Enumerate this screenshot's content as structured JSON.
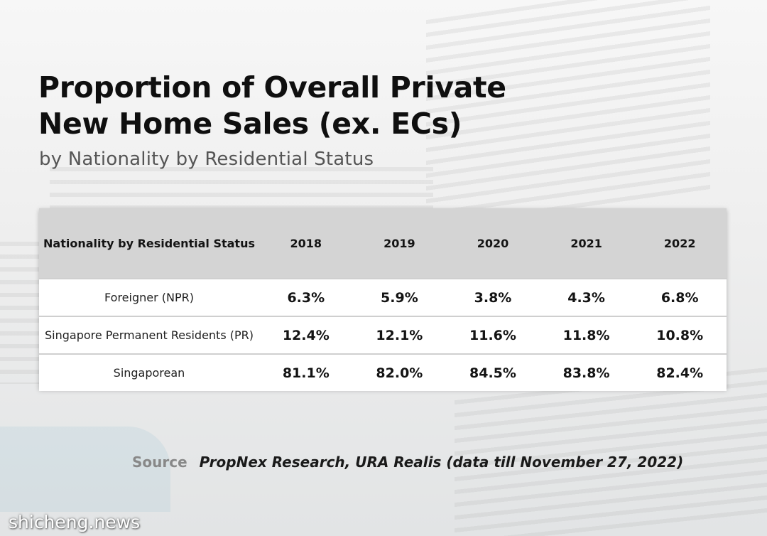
{
  "title": "Proportion of Overall Private New Home Sales (ex. ECs)",
  "subtitle": "by Nationality by Residential Status",
  "table": {
    "header_first": "Nationality by Residential Status",
    "years": [
      "2018",
      "2019",
      "2020",
      "2021",
      "2022"
    ],
    "rows": [
      {
        "label": "Foreigner (NPR)",
        "values": [
          "6.3%",
          "5.9%",
          "3.8%",
          "4.3%",
          "6.8%"
        ]
      },
      {
        "label": "Singapore Permanent Residents (PR)",
        "values": [
          "12.4%",
          "12.1%",
          "11.6%",
          "11.8%",
          "10.8%"
        ]
      },
      {
        "label": "Singaporean",
        "values": [
          "81.1%",
          "82.0%",
          "84.5%",
          "83.8%",
          "82.4%"
        ]
      }
    ]
  },
  "source": {
    "label": "Source",
    "text": "PropNex Research, URA Realis (data till November 27, 2022)"
  },
  "watermark": "shicheng.news"
}
